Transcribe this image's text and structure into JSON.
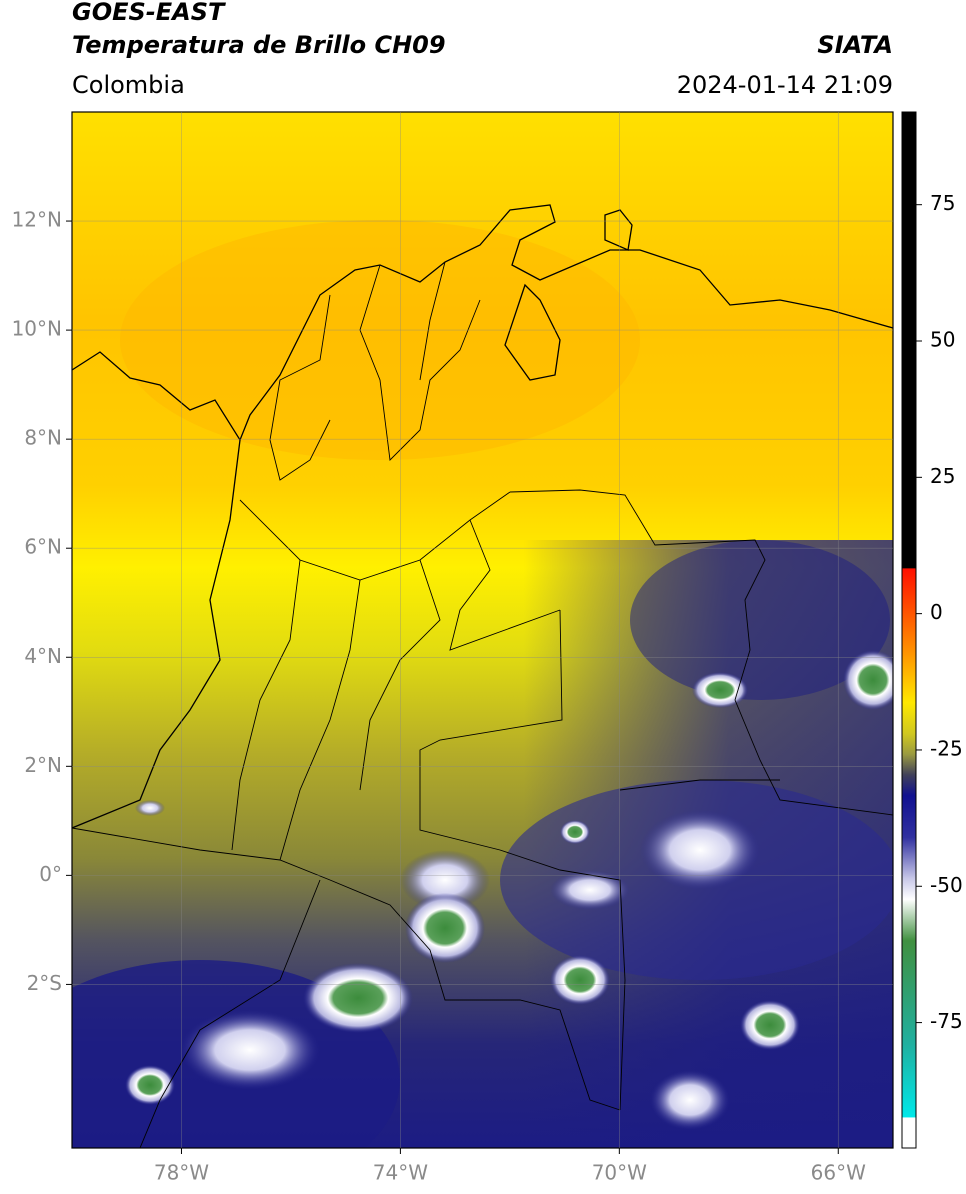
{
  "header": {
    "satellite": "GOES-EAST",
    "product": "Temperatura de Brillo CH09",
    "region": "Colombia",
    "source": "SIATA",
    "datetime": "2024-01-14 21:09"
  },
  "map": {
    "xlim": [
      -80,
      -65
    ],
    "ylim": [
      -5,
      14
    ],
    "grid": true,
    "xticks": [
      {
        "value": -78,
        "label": "78°W"
      },
      {
        "value": -74,
        "label": "74°W"
      },
      {
        "value": -70,
        "label": "70°W"
      },
      {
        "value": -66,
        "label": "66°W"
      }
    ],
    "yticks": [
      {
        "value": 12,
        "label": "12°N"
      },
      {
        "value": 10,
        "label": "10°N"
      },
      {
        "value": 8,
        "label": "8°N"
      },
      {
        "value": 6,
        "label": "6°N"
      },
      {
        "value": 4,
        "label": "4°N"
      },
      {
        "value": 2,
        "label": "2°N"
      },
      {
        "value": 0,
        "label": "0°"
      },
      {
        "value": -2,
        "label": "2°S"
      }
    ]
  },
  "colorbar": {
    "ylim": [
      -98,
      92
    ],
    "yticks": [
      75,
      50,
      25,
      0,
      -25,
      -50,
      -75
    ]
  }
}
